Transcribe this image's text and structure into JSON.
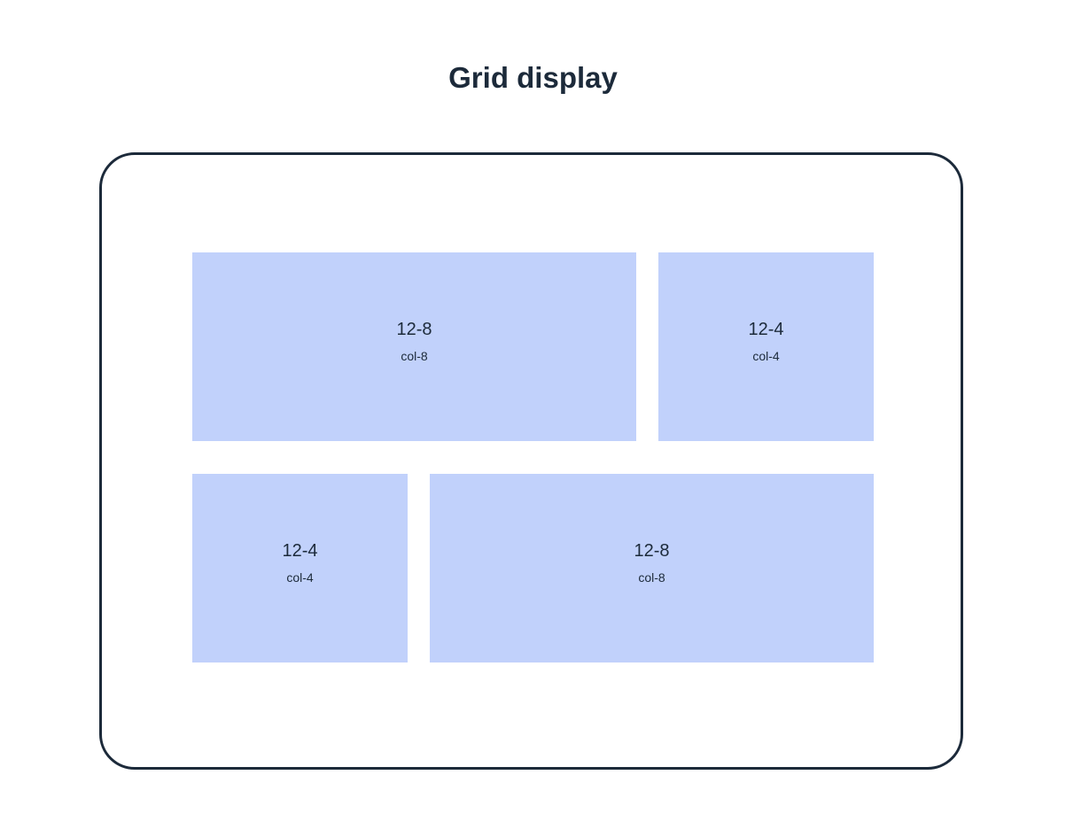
{
  "title": "Grid display",
  "colors": {
    "frame_border": "#1c2a3a",
    "cell_fill": "#c1d1fb",
    "text": "#1c2a3a"
  },
  "rows": [
    {
      "cells": [
        {
          "title": "12-8",
          "subtitle": "col-8"
        },
        {
          "title": "12-4",
          "subtitle": "col-4"
        }
      ]
    },
    {
      "cells": [
        {
          "title": "12-4",
          "subtitle": "col-4"
        },
        {
          "title": "12-8",
          "subtitle": "col-8"
        }
      ]
    }
  ]
}
